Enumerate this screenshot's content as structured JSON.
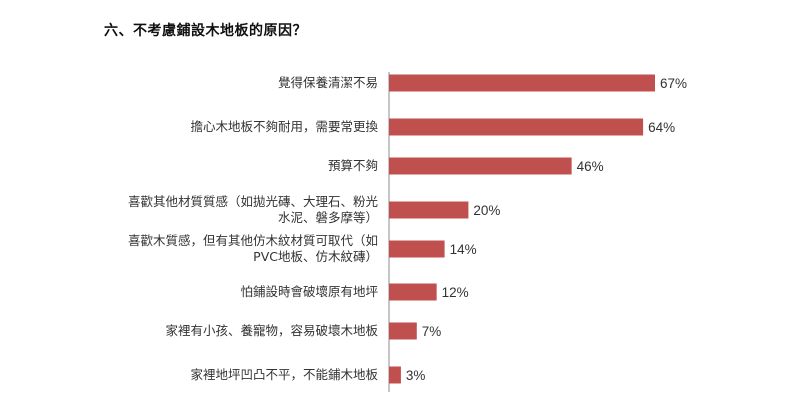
{
  "title": "六、不考慮鋪設木地板的原因？",
  "chart_data": {
    "type": "bar",
    "orientation": "horizontal",
    "title": "六、不考慮鋪設木地板的原因？",
    "xlabel": "",
    "ylabel": "",
    "xlim": [
      0,
      70
    ],
    "grid": false,
    "bar_color": "#c0504d",
    "categories": [
      [
        "覺得保養清潔不易"
      ],
      [
        "擔心木地板不夠耐用，需要常更換"
      ],
      [
        "預算不夠"
      ],
      [
        "喜歡其他材質質感（如拋光磚、大理石、粉光",
        "水泥、磐多摩等）"
      ],
      [
        "喜歡木質感，但有其他仿木紋材質可取代（如",
        "PVC地板、仿木紋磚）"
      ],
      [
        "怕鋪設時會破壞原有地坪"
      ],
      [
        "家裡有小孩、養寵物，容易破壞木地板"
      ],
      [
        "家裡地坪凹凸不平，不能鋪木地板"
      ]
    ],
    "values": [
      67,
      64,
      46,
      20,
      14,
      12,
      7,
      3
    ],
    "value_labels": [
      "67%",
      "64%",
      "46%",
      "20%",
      "14%",
      "12%",
      "7%",
      "3%"
    ]
  }
}
